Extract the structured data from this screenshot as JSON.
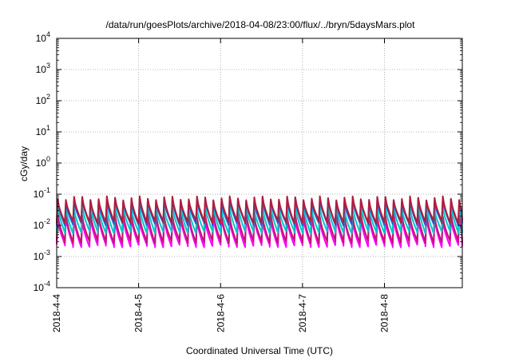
{
  "chart_data": {
    "type": "line",
    "title": "/data/run/goesPlots/archive/2018-04-08/23:00/flux/../bryn/5daysMars.plot",
    "xlabel": "Coordinated Universal Time (UTC)",
    "ylabel": "cGy/day",
    "x_ticks": [
      "2018-4-4",
      "2018-4-5",
      "2018-4-6",
      "2018-4-7",
      "2018-4-8"
    ],
    "x_range_days": [
      0,
      4.95
    ],
    "y_scale": "log",
    "ylim": [
      0.0001,
      10000
    ],
    "y_ticks": [
      {
        "base": "10",
        "exp": "-4"
      },
      {
        "base": "10",
        "exp": "-3"
      },
      {
        "base": "10",
        "exp": "-2"
      },
      {
        "base": "10",
        "exp": "-1"
      },
      {
        "base": "10",
        "exp": "0"
      },
      {
        "base": "10",
        "exp": "1"
      },
      {
        "base": "10",
        "exp": "2"
      },
      {
        "base": "10",
        "exp": "3"
      },
      {
        "base": "10",
        "exp": "4"
      }
    ],
    "grid": true,
    "cycle_days": 0.1,
    "series": [
      {
        "color": "#ff00ff",
        "peak": 0.017,
        "trough": 0.0022
      },
      {
        "color": "#c0166e",
        "peak": 0.022,
        "trough": 0.003
      },
      {
        "color": "#00c8c8",
        "peak": 0.04,
        "trough": 0.006
      },
      {
        "color": "#1f5fd6",
        "peak": 0.065,
        "trough": 0.011
      },
      {
        "color": "#b01c3c",
        "peak": 0.075,
        "trough": 0.013
      }
    ]
  }
}
